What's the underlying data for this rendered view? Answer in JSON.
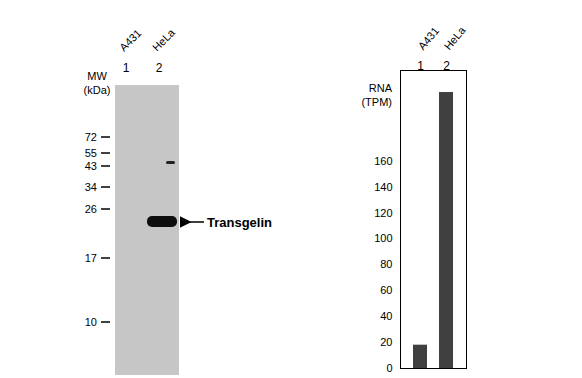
{
  "chart_data": {
    "type": "bar",
    "y_label": "RNA (TPM)",
    "categories": [
      "A431",
      "HeLa"
    ],
    "lane_numbers": [
      "1",
      "2"
    ],
    "values": [
      18,
      213
    ],
    "color": "#404040",
    "ylim": [
      0,
      230
    ],
    "yticks": [
      0,
      20,
      40,
      60,
      80,
      100,
      120,
      140,
      160
    ],
    "grid": false
  },
  "blot": {
    "lanes": [
      {
        "number": "1",
        "label": "A431"
      },
      {
        "number": "2",
        "label": "HeLa"
      }
    ],
    "mw_label": [
      "MW",
      "(kDa)"
    ],
    "markers": [
      72,
      55,
      43,
      34,
      26,
      17,
      10
    ],
    "band_label": "Transgelin"
  }
}
